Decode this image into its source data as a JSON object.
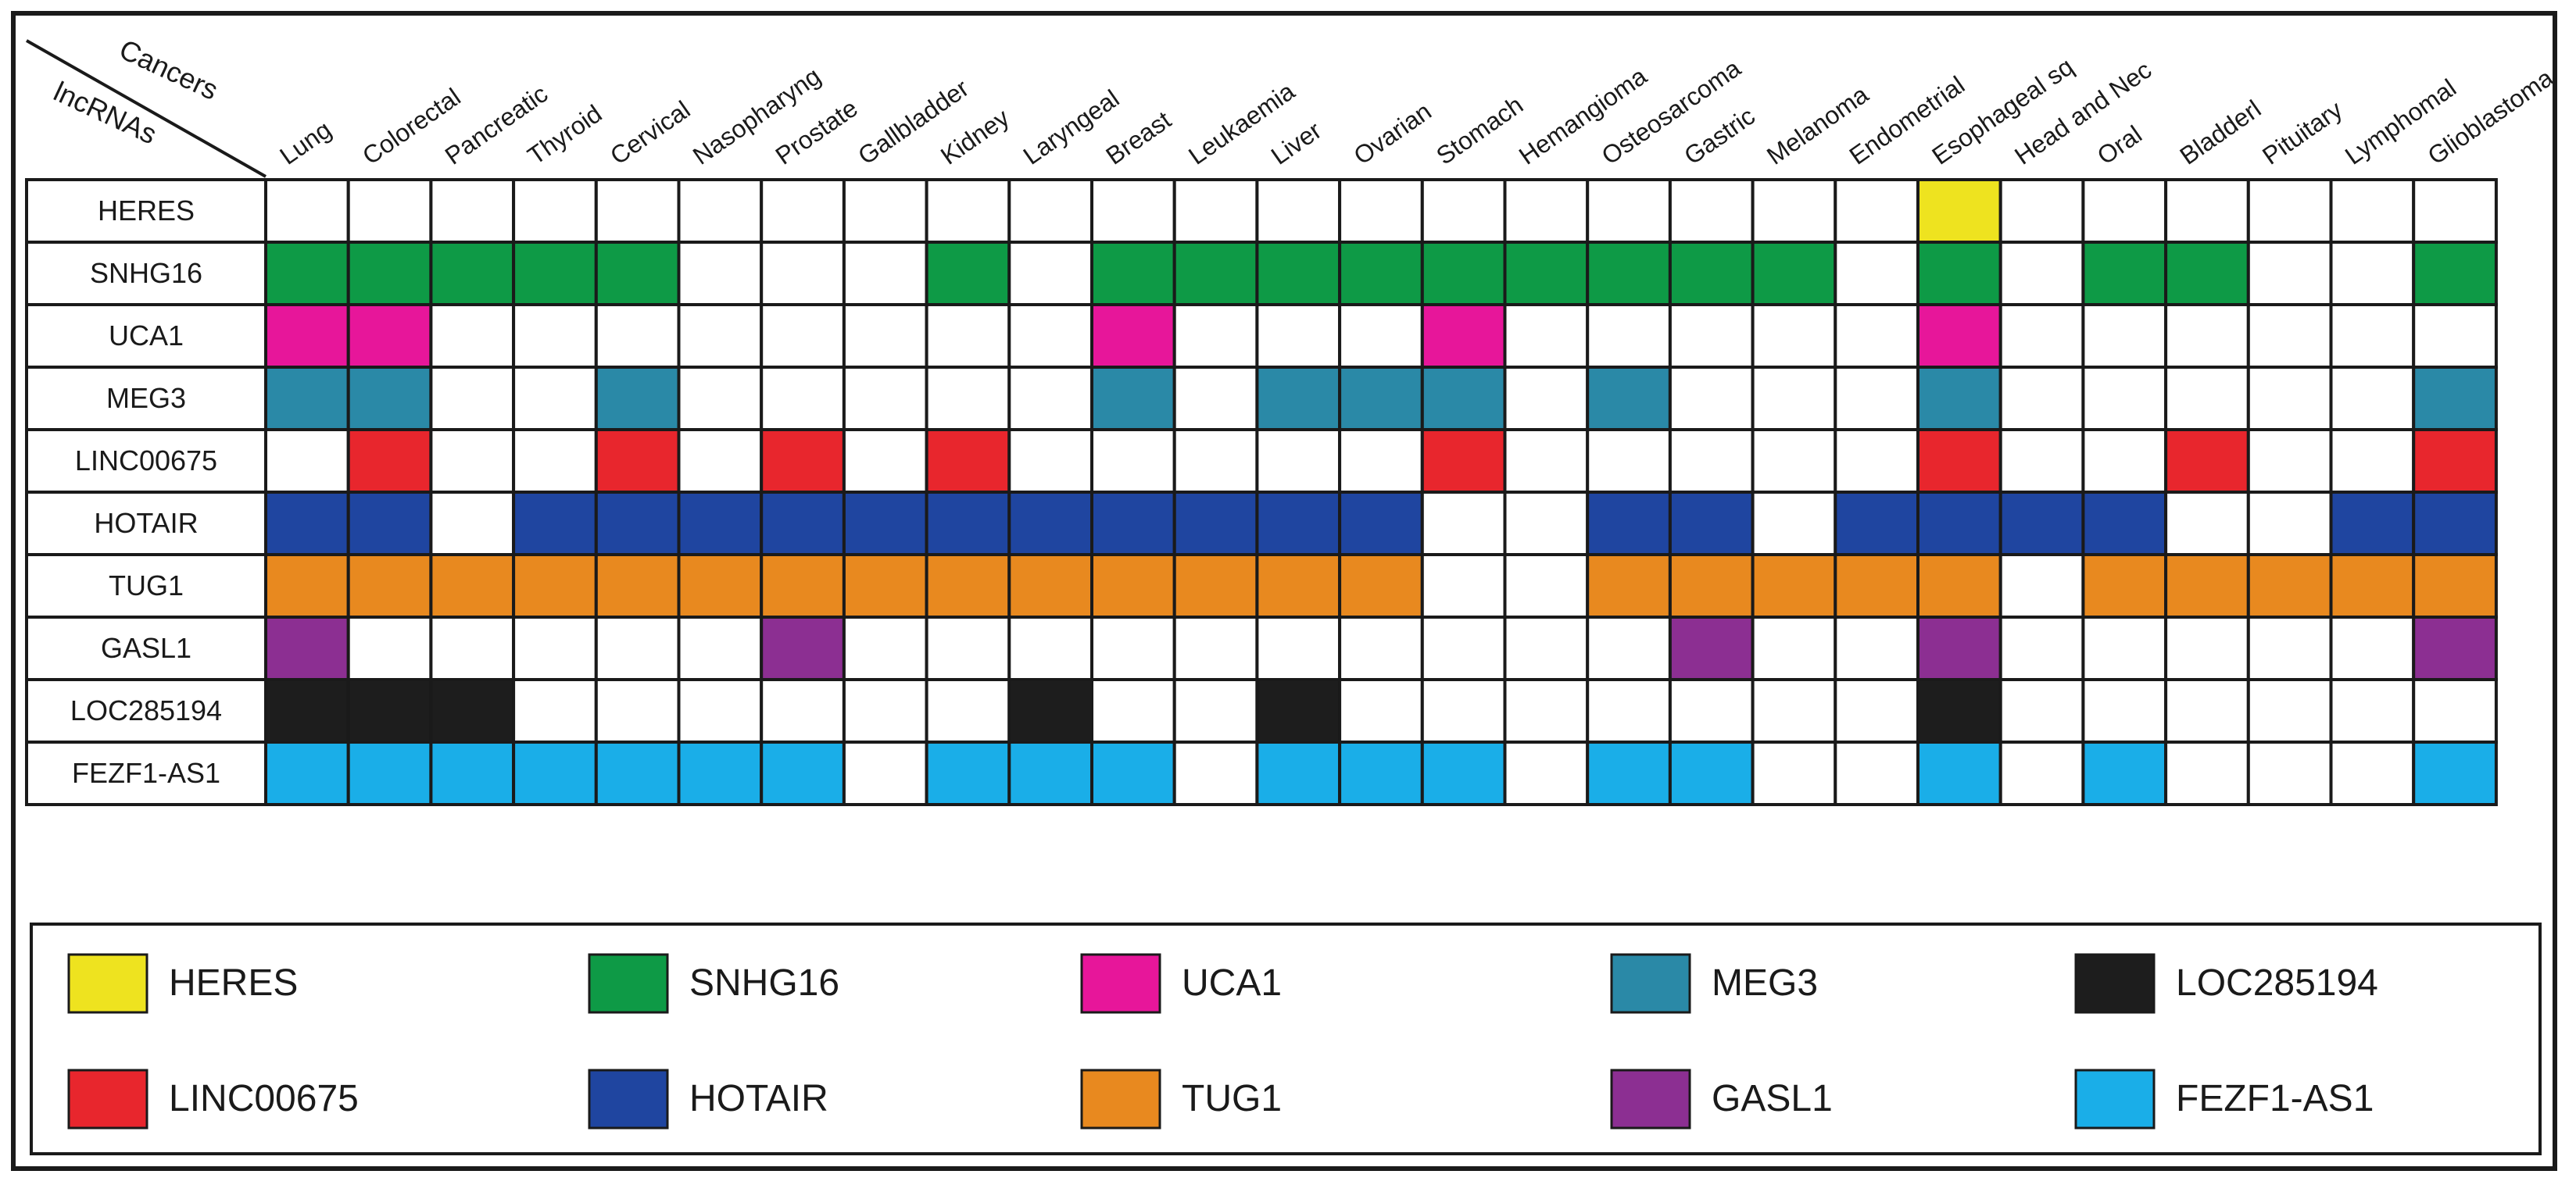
{
  "chart_data": {
    "type": "heatmap",
    "corner_labels": {
      "top": "Cancers",
      "bottom": "lncRNAs"
    },
    "columns": [
      "Lung",
      "Colorectal",
      "Pancreatic",
      "Thyroid",
      "Cervical",
      "Nasopharyngeal",
      "Prostate",
      "Gallbladder",
      "Kidney",
      "Laryngeal",
      "Breast",
      "Leukaemia",
      "Liver",
      "Ovarian",
      "Stomach",
      "Hemangioma",
      "Osteosarcoma",
      "Gastric",
      "Melanoma",
      "Endometrial",
      "Esophageal squamous",
      "Head and Neck",
      "Oral",
      "Bladderl",
      "Pituitary",
      "Lymphomal",
      "Glioblastoma"
    ],
    "column_labels_visible": [
      "Lung",
      "Colorectal",
      "Pancreatic",
      "Thyroid",
      "Cervical",
      "Nasopharyng",
      "Prostate",
      "Gallbladder",
      "Kidney",
      "Laryngeal",
      "Breast",
      "Leukaemia",
      "Liver",
      "Ovarian",
      "Stomach",
      "Hemangioma",
      "Osteosarcoma",
      "Gastric",
      "Melanoma",
      "Endometrial",
      "Esophageal sq",
      "Head and Nec",
      "Oral",
      "Bladderl",
      "Pituitary",
      "Lymphomal",
      "Glioblastoma"
    ],
    "rows": [
      {
        "name": "HERES",
        "color": "#eee31f",
        "present": [
          0,
          0,
          0,
          0,
          0,
          0,
          0,
          0,
          0,
          0,
          0,
          0,
          0,
          0,
          0,
          0,
          0,
          0,
          0,
          0,
          1,
          0,
          0,
          0,
          0,
          0,
          0
        ]
      },
      {
        "name": "SNHG16",
        "color": "#0e9a46",
        "present": [
          1,
          1,
          1,
          1,
          1,
          0,
          0,
          0,
          1,
          0,
          1,
          1,
          1,
          1,
          1,
          1,
          1,
          1,
          1,
          0,
          1,
          0,
          1,
          1,
          0,
          0,
          1
        ]
      },
      {
        "name": "UCA1",
        "color": "#e7169a",
        "present": [
          1,
          1,
          0,
          0,
          0,
          0,
          0,
          0,
          0,
          0,
          1,
          0,
          0,
          0,
          1,
          0,
          0,
          0,
          0,
          0,
          1,
          0,
          0,
          0,
          0,
          0,
          0
        ]
      },
      {
        "name": "MEG3",
        "color": "#2a89a7",
        "present": [
          1,
          1,
          0,
          0,
          1,
          0,
          0,
          0,
          0,
          0,
          1,
          0,
          1,
          1,
          1,
          0,
          1,
          0,
          0,
          0,
          1,
          0,
          0,
          0,
          0,
          0,
          1
        ]
      },
      {
        "name": "LINC00675",
        "color": "#e8262d",
        "present": [
          0,
          1,
          0,
          0,
          1,
          0,
          1,
          0,
          1,
          0,
          0,
          0,
          0,
          0,
          1,
          0,
          0,
          0,
          0,
          0,
          1,
          0,
          0,
          1,
          0,
          0,
          1
        ]
      },
      {
        "name": "HOTAIR",
        "color": "#1f45a0",
        "present": [
          1,
          1,
          0,
          1,
          1,
          1,
          1,
          1,
          1,
          1,
          1,
          1,
          1,
          1,
          0,
          0,
          1,
          1,
          0,
          1,
          1,
          1,
          1,
          0,
          0,
          1,
          1
        ]
      },
      {
        "name": "TUG1",
        "color": "#e8891f",
        "present": [
          1,
          1,
          1,
          1,
          1,
          1,
          1,
          1,
          1,
          1,
          1,
          1,
          1,
          1,
          0,
          0,
          1,
          1,
          1,
          1,
          1,
          0,
          1,
          1,
          1,
          1,
          1
        ]
      },
      {
        "name": "GASL1",
        "color": "#8c2f92",
        "present": [
          1,
          0,
          0,
          0,
          0,
          0,
          1,
          0,
          0,
          0,
          0,
          0,
          0,
          0,
          0,
          0,
          0,
          1,
          0,
          0,
          1,
          0,
          0,
          0,
          0,
          0,
          1
        ]
      },
      {
        "name": "LOC285194",
        "color": "#1d1d1d",
        "present": [
          1,
          1,
          1,
          0,
          0,
          0,
          0,
          0,
          0,
          1,
          0,
          0,
          1,
          0,
          0,
          0,
          0,
          0,
          0,
          0,
          1,
          0,
          0,
          0,
          0,
          0,
          0
        ]
      },
      {
        "name": "FEZF1-AS1",
        "color": "#1aaee8",
        "present": [
          1,
          1,
          1,
          1,
          1,
          1,
          1,
          0,
          1,
          1,
          1,
          0,
          1,
          1,
          1,
          0,
          1,
          1,
          0,
          0,
          1,
          0,
          1,
          0,
          0,
          0,
          1
        ]
      }
    ],
    "legend": {
      "items": [
        {
          "label": "HERES",
          "color": "#eee31f"
        },
        {
          "label": "SNHG16",
          "color": "#0e9a46"
        },
        {
          "label": "UCA1",
          "color": "#e7169a"
        },
        {
          "label": "MEG3",
          "color": "#2a89a7"
        },
        {
          "label": "LOC285194",
          "color": "#1d1d1d"
        },
        {
          "label": "LINC00675",
          "color": "#e8262d"
        },
        {
          "label": "HOTAIR",
          "color": "#1f45a0"
        },
        {
          "label": "TUG1",
          "color": "#e8891f"
        },
        {
          "label": "GASL1",
          "color": "#8c2f92"
        },
        {
          "label": "FEZF1-AS1",
          "color": "#1aaee8"
        }
      ],
      "placement": "bottom"
    }
  }
}
